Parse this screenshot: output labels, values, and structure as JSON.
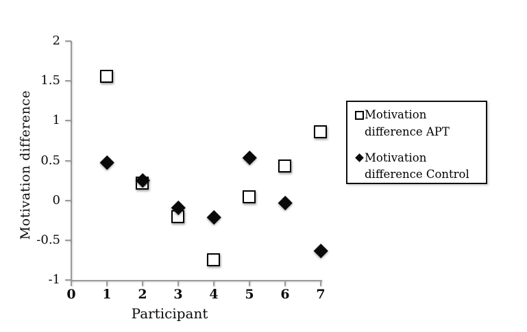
{
  "chart_data": {
    "type": "scatter",
    "title": "",
    "xlabel": "Participant",
    "ylabel": "Motivation difference",
    "x": [
      1,
      2,
      3,
      4,
      5,
      6,
      7
    ],
    "series": [
      {
        "name": "Motivation difference APT",
        "marker": "open-square",
        "color": "#000000",
        "values": [
          1.55,
          0.21,
          -0.21,
          -0.75,
          0.04,
          0.43,
          0.86
        ]
      },
      {
        "name": "Motivation difference Control",
        "marker": "filled-diamond",
        "color": "#000000",
        "values": [
          0.48,
          0.25,
          -0.09,
          -0.21,
          0.54,
          -0.03,
          -0.63
        ]
      }
    ],
    "xlim": [
      0,
      7
    ],
    "ylim": [
      -1,
      2
    ],
    "xticks": [
      "0",
      "1",
      "2",
      "3",
      "4",
      "5",
      "6",
      "7"
    ],
    "yticks": [
      "2",
      "1.5",
      "1",
      "0.5",
      "0",
      "-0.5",
      "-1"
    ],
    "grid": false,
    "legend_position": "right",
    "axis_color": "#9b9b9b",
    "background": "#ffffff"
  },
  "legend": {
    "items": [
      {
        "label": "Motivation difference APT",
        "marker": "open-square"
      },
      {
        "label": "Motivation difference Control",
        "marker": "filled-diamond"
      }
    ]
  }
}
